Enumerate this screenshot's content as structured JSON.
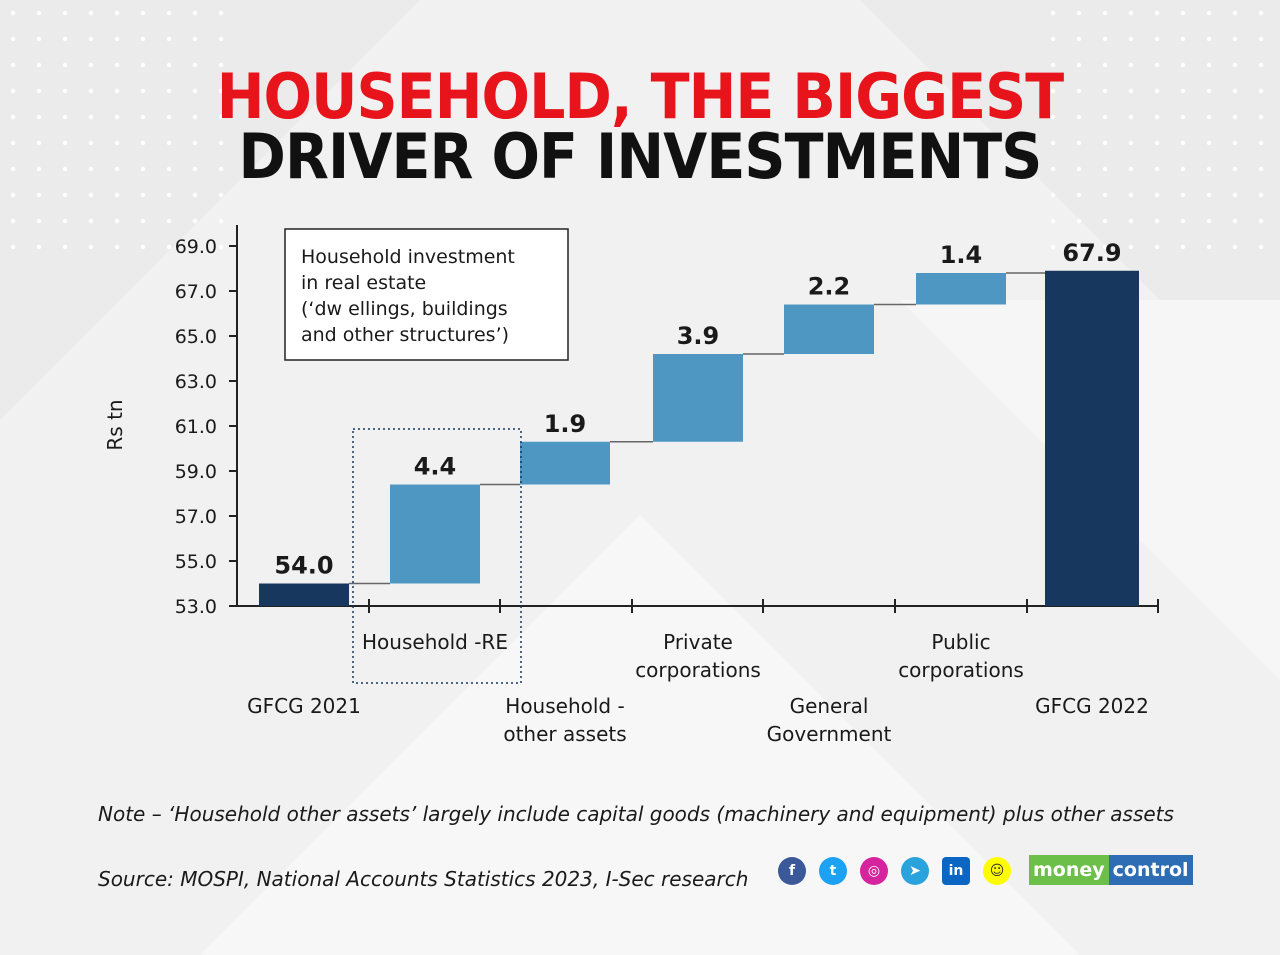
{
  "title": {
    "line1": "HOUSEHOLD, THE BIGGEST",
    "line2": "DRIVER OF INVESTMENTS",
    "line1_color": "#e8141b",
    "line2_color": "#111111"
  },
  "chart_data": {
    "type": "waterfall",
    "ylabel": "Rs tn",
    "ylim": [
      53.0,
      70.0
    ],
    "yticks": [
      "53.0",
      "55.0",
      "57.0",
      "59.0",
      "61.0",
      "63.0",
      "65.0",
      "67.0",
      "69.0"
    ],
    "bars": [
      {
        "name": "GFCG 2021",
        "label_lines": [
          "GFCG 2021"
        ],
        "start": 53.0,
        "end": 54.0,
        "value_label": "54.0",
        "kind": "total"
      },
      {
        "name": "Household -RE",
        "label_lines": [
          "Household -RE"
        ],
        "start": 54.0,
        "end": 58.4,
        "value_label": "4.4",
        "kind": "step"
      },
      {
        "name": "Household - other assets",
        "label_lines": [
          "Household -",
          "other assets"
        ],
        "start": 58.4,
        "end": 60.3,
        "value_label": "1.9",
        "kind": "step"
      },
      {
        "name": "Private corporations",
        "label_lines": [
          "Private",
          "corporations"
        ],
        "start": 60.3,
        "end": 64.2,
        "value_label": "3.9",
        "kind": "step"
      },
      {
        "name": "General Government",
        "label_lines": [
          "General",
          "Government"
        ],
        "start": 64.2,
        "end": 66.4,
        "value_label": "2.2",
        "kind": "step"
      },
      {
        "name": "Public corporations",
        "label_lines": [
          "Public",
          "corporations"
        ],
        "start": 66.4,
        "end": 67.8,
        "value_label": "1.4",
        "kind": "step"
      },
      {
        "name": "GFCG 2022",
        "label_lines": [
          "GFCG 2022"
        ],
        "start": 53.0,
        "end": 67.9,
        "value_label": "67.9",
        "kind": "total"
      }
    ],
    "annotation": {
      "lines": [
        "Household investment",
        "in real estate",
        "(‘dw ellings, buildings",
        "and other structures’)"
      ],
      "highlights": "Household -RE"
    },
    "colors": {
      "total": "#17375e",
      "step": "#4f97c3",
      "connector": "#666666",
      "axis": "#222222"
    }
  },
  "footer": {
    "note": "Note – ‘Household other assets’ largely include capital goods (machinery and equipment) plus other assets",
    "source": "Source: MOSPI, National Accounts Statistics 2023, I-Sec research",
    "brand_part1": "money",
    "brand_part2": "control",
    "social_icons": [
      "facebook-icon",
      "twitter-icon",
      "instagram-icon",
      "telegram-icon",
      "linkedin-icon",
      "snapchat-icon"
    ]
  }
}
